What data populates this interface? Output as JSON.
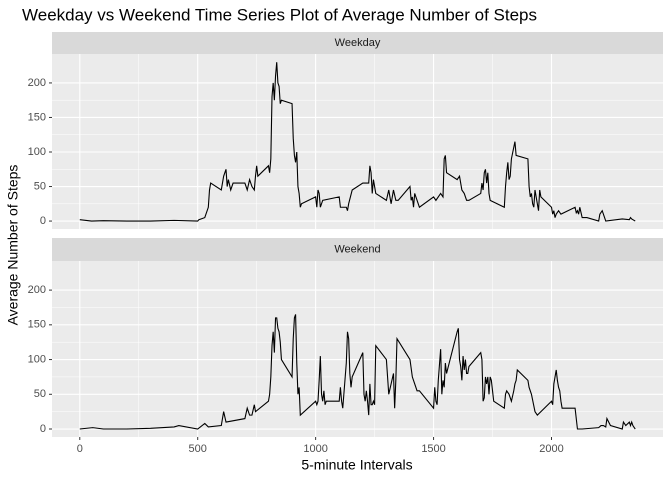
{
  "chart_data": {
    "type": "line",
    "title": "Weekday vs Weekend Time Series Plot of Average Number of Steps",
    "xlabel": "5-minute Intervals",
    "ylabel": "Average Number of Steps",
    "xlim": [
      -117.75,
      2472.75
    ],
    "ylim": [
      -11.5,
      241.9
    ],
    "xticks": [
      0,
      500,
      1000,
      1500,
      2000
    ],
    "yticks": [
      0,
      50,
      100,
      150,
      200
    ],
    "grid": true,
    "color": "#000000",
    "facets": [
      {
        "label": "Weekday",
        "x": [
          0,
          50,
          100,
          200,
          300,
          400,
          500,
          505,
          530,
          545,
          550,
          555,
          600,
          610,
          620,
          625,
          630,
          640,
          650,
          700,
          710,
          720,
          730,
          740,
          745,
          750,
          755,
          800,
          805,
          810,
          815,
          820,
          825,
          830,
          835,
          840,
          845,
          850,
          855,
          900,
          905,
          910,
          915,
          920,
          925,
          930,
          935,
          940,
          1000,
          1005,
          1010,
          1015,
          1020,
          1030,
          1100,
          1105,
          1130,
          1135,
          1140,
          1155,
          1200,
          1210,
          1225,
          1230,
          1235,
          1240,
          1245,
          1250,
          1255,
          1300,
          1310,
          1320,
          1330,
          1340,
          1350,
          1400,
          1405,
          1410,
          1415,
          1420,
          1430,
          1440,
          1500,
          1510,
          1530,
          1540,
          1545,
          1550,
          1555,
          1600,
          1610,
          1620,
          1630,
          1640,
          1650,
          1700,
          1705,
          1710,
          1715,
          1720,
          1725,
          1730,
          1735,
          1740,
          1800,
          1805,
          1810,
          1815,
          1820,
          1825,
          1830,
          1845,
          1850,
          1900,
          1905,
          1910,
          1915,
          1920,
          1925,
          1930,
          1940,
          1945,
          1950,
          1955,
          2000,
          2005,
          2010,
          2015,
          2020,
          2030,
          2040,
          2100,
          2105,
          2110,
          2115,
          2120,
          2130,
          2150,
          2200,
          2205,
          2215,
          2225,
          2230,
          2300,
          2330,
          2335,
          2340,
          2355
        ],
        "values": [
          2,
          0,
          0.5,
          0,
          0,
          1,
          0,
          2,
          5,
          20,
          45,
          55,
          45,
          65,
          75,
          50,
          60,
          45,
          55,
          55,
          45,
          60,
          50,
          45,
          65,
          80,
          65,
          80,
          70,
          90,
          180,
          200,
          175,
          210,
          230,
          200,
          195,
          170,
          175,
          170,
          120,
          95,
          85,
          100,
          50,
          40,
          20,
          25,
          35,
          20,
          45,
          40,
          20,
          30,
          35,
          20,
          20,
          15,
          25,
          45,
          55,
          55,
          55,
          80,
          70,
          40,
          60,
          50,
          40,
          30,
          45,
          25,
          45,
          30,
          30,
          50,
          30,
          35,
          20,
          40,
          30,
          20,
          35,
          30,
          40,
          35,
          90,
          95,
          70,
          60,
          65,
          45,
          40,
          30,
          30,
          40,
          55,
          45,
          70,
          75,
          55,
          70,
          40,
          30,
          20,
          50,
          70,
          85,
          60,
          65,
          90,
          115,
          95,
          90,
          50,
          35,
          40,
          25,
          20,
          45,
          25,
          15,
          45,
          35,
          20,
          10,
          15,
          5,
          10,
          15,
          10,
          20,
          12,
          15,
          10,
          20,
          5,
          5,
          0,
          10,
          15,
          5,
          0,
          3,
          2,
          5,
          3,
          0
        ]
      },
      {
        "label": "Weekend",
        "x": [
          0,
          55,
          100,
          200,
          300,
          400,
          420,
          500,
          530,
          545,
          600,
          610,
          620,
          700,
          710,
          720,
          730,
          740,
          745,
          800,
          805,
          810,
          815,
          820,
          825,
          830,
          835,
          840,
          845,
          850,
          855,
          900,
          905,
          910,
          915,
          920,
          925,
          930,
          935,
          1000,
          1005,
          1010,
          1015,
          1020,
          1025,
          1030,
          1035,
          1040,
          1045,
          1100,
          1105,
          1110,
          1115,
          1130,
          1135,
          1140,
          1145,
          1150,
          1155,
          1200,
          1205,
          1210,
          1215,
          1220,
          1225,
          1230,
          1235,
          1240,
          1245,
          1250,
          1255,
          1300,
          1310,
          1320,
          1330,
          1335,
          1340,
          1345,
          1400,
          1410,
          1430,
          1440,
          1500,
          1505,
          1510,
          1515,
          1520,
          1530,
          1535,
          1540,
          1545,
          1550,
          1555,
          1600,
          1605,
          1610,
          1615,
          1620,
          1625,
          1630,
          1635,
          1640,
          1645,
          1650,
          1700,
          1705,
          1710,
          1715,
          1720,
          1725,
          1730,
          1735,
          1740,
          1745,
          1750,
          1755,
          1800,
          1805,
          1810,
          1820,
          1830,
          1840,
          1845,
          1850,
          1855,
          1900,
          1905,
          1915,
          1930,
          1940,
          2000,
          2005,
          2010,
          2015,
          2020,
          2025,
          2030,
          2035,
          2040,
          2045,
          2100,
          2105,
          2110,
          2130,
          2200,
          2210,
          2220,
          2230,
          2235,
          2250,
          2300,
          2305,
          2315,
          2330,
          2335,
          2340,
          2345,
          2355
        ],
        "values": [
          0,
          2,
          0,
          0,
          1,
          3,
          5,
          0,
          8,
          3,
          5,
          25,
          10,
          15,
          30,
          20,
          20,
          35,
          25,
          40,
          50,
          75,
          120,
          140,
          110,
          160,
          160,
          145,
          140,
          125,
          100,
          75,
          130,
          160,
          165,
          95,
          50,
          60,
          20,
          40,
          35,
          40,
          70,
          105,
          50,
          40,
          55,
          35,
          40,
          40,
          60,
          40,
          30,
          95,
          140,
          130,
          80,
          60,
          75,
          110,
          50,
          40,
          55,
          40,
          20,
          65,
          35,
          35,
          40,
          35,
          120,
          100,
          50,
          65,
          80,
          30,
          70,
          130,
          100,
          75,
          55,
          55,
          30,
          60,
          40,
          35,
          70,
          115,
          50,
          70,
          60,
          95,
          80,
          140,
          145,
          100,
          90,
          70,
          105,
          85,
          100,
          80,
          80,
          90,
          110,
          100,
          40,
          45,
          75,
          65,
          75,
          50,
          75,
          70,
          55,
          40,
          30,
          50,
          55,
          50,
          40,
          55,
          65,
          70,
          85,
          70,
          60,
          50,
          25,
          20,
          40,
          35,
          65,
          75,
          85,
          70,
          60,
          55,
          40,
          30,
          30,
          15,
          0,
          0,
          2,
          5,
          5,
          3,
          15,
          5,
          0,
          10,
          5,
          10,
          5,
          10,
          5,
          0
        ]
      }
    ]
  }
}
